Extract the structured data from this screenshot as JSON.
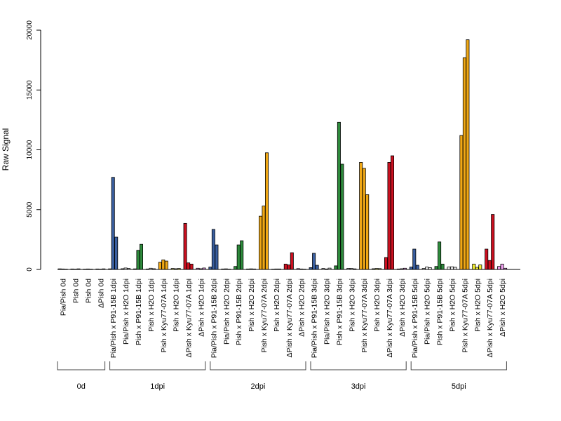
{
  "chart_data": {
    "type": "bar",
    "title": "",
    "xlabel": "",
    "ylabel": "Raw Signal",
    "ylim": [
      0,
      20000
    ],
    "yticks": [
      "0",
      "5000",
      "10000",
      "15000",
      "20000"
    ],
    "categories": [
      "Pia/Pish 0d",
      "Pish 0d",
      "Pish 0d",
      "ΔPish 0d",
      "Pia/Pish x P91-15B 1dpi",
      "Pia/Pish x H2O 1dpi",
      "Pish x P91-15B 1dpi",
      "Pish x H2O 1dpi",
      "Pish x Kyu77-07A 1dpi",
      "Pish x H2O 1dpi",
      "ΔPish x Kyu77-07A 1dpi",
      "ΔPish x H2O 1dpi",
      "Pia/Pish x P91-15B 2dpi",
      "Pia/Pish x H2O 2dpi",
      "Pish x P91-15B 2dpi",
      "Pish x H2O 2dpi",
      "Pish x Kyu77-07A 2dpi",
      "Pish x H2O 2dpi",
      "ΔPish x Kyu77-07A 2dpi",
      "ΔPish x H2O 2dpi",
      "Pia/Pish x P91-15B 3dpi",
      "Pia/Pish x H2O 3dpi",
      "Pish x P91-15B 3dpi",
      "Pish x H2O 3dpi",
      "Pish x Kyu77-07A 3dpi",
      "Pish x H2O 3dpi",
      "ΔPish x Kyu77-07A 3dpi",
      "ΔPish x H2O 3dpi",
      "Pia/Pish x P91-15B 5dpi",
      "Pia/Pish x H2O 5dpi",
      "Pish x P91-15B 5dpi",
      "Pish x H2O 5dpi",
      "Pish x Kyu77-07A 5dpi",
      "Pish x H2O 5dpi",
      "ΔPish x Kyu77-07A 5dpi",
      "ΔPish x H2O 5dpi"
    ],
    "groups": [
      {
        "label": "0d",
        "count": 4
      },
      {
        "label": "1dpi",
        "count": 8
      },
      {
        "label": "2dpi",
        "count": 8
      },
      {
        "label": "3dpi",
        "count": 8
      },
      {
        "label": "5dpi",
        "count": 8
      }
    ],
    "replicates": [
      [
        50,
        40,
        30
      ],
      [
        40,
        30,
        50
      ],
      [
        30,
        40,
        30
      ],
      [
        40,
        30,
        50
      ],
      [
        50,
        7700,
        2700
      ],
      [
        60,
        120,
        80
      ],
      [
        50,
        1600,
        2100
      ],
      [
        40,
        100,
        60
      ],
      [
        600,
        800,
        700
      ],
      [
        80,
        60,
        80
      ],
      [
        3850,
        550,
        450
      ],
      [
        100,
        60,
        120
      ],
      [
        200,
        3350,
        2050
      ],
      [
        40,
        50,
        30
      ],
      [
        250,
        2050,
        2400
      ],
      [
        40,
        50,
        40
      ],
      [
        4450,
        5300,
        9750
      ],
      [
        30,
        40,
        40
      ],
      [
        450,
        380,
        1400
      ],
      [
        70,
        40,
        30
      ],
      [
        150,
        1350,
        350
      ],
      [
        80,
        40,
        110
      ],
      [
        300,
        12300,
        8800
      ],
      [
        90,
        80,
        50
      ],
      [
        8950,
        8450,
        6250
      ],
      [
        60,
        80,
        70
      ],
      [
        1000,
        8950,
        9500
      ],
      [
        40,
        60,
        100
      ],
      [
        200,
        1700,
        350
      ],
      [
        80,
        200,
        150
      ],
      [
        250,
        2300,
        450
      ],
      [
        200,
        220,
        180
      ],
      [
        11200,
        17700,
        19200
      ],
      [
        450,
        180,
        380
      ],
      [
        1700,
        750,
        4600
      ],
      [
        250,
        450,
        100
      ]
    ],
    "condition_colors": [
      "#3a5fa0",
      "#f4f4f4",
      "#2e8b3c",
      "#f4f4f4",
      "#f0a815",
      "#f6f030",
      "#cc1020",
      "#f0a0f0"
    ]
  }
}
